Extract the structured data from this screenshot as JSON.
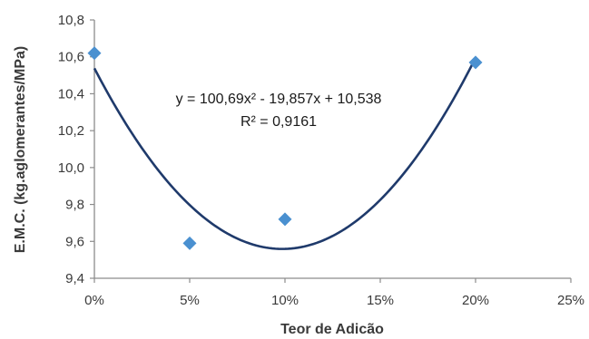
{
  "chart_data": {
    "type": "scatter",
    "xlabel": "Teor de Adicão",
    "ylabel": "E.M.C. (kg.aglomerantes/MPa)",
    "x_ticks": [
      "0%",
      "5%",
      "10%",
      "15%",
      "20%",
      "25%"
    ],
    "y_ticks": [
      "9,4",
      "9,6",
      "9,8",
      "10,0",
      "10,2",
      "10,4",
      "10,6",
      "10,8"
    ],
    "xlim": [
      0,
      0.25
    ],
    "ylim": [
      9.4,
      10.8
    ],
    "grid": false,
    "series": [
      {
        "marker": "diamond",
        "color": "#4a90d0",
        "x": [
          0,
          0.05,
          0.1,
          0.2
        ],
        "y": [
          10.62,
          9.59,
          9.72,
          10.57
        ]
      }
    ],
    "trendline": {
      "type": "polynomial",
      "order": 2,
      "coefficients": [
        100.69,
        -19.857,
        10.538
      ],
      "x_range": [
        0,
        0.2
      ],
      "color": "#1f3a6b",
      "equation": "y = 100,69x² - 19,857x + 10,538",
      "r2_label": "R² = 0,9161"
    }
  }
}
